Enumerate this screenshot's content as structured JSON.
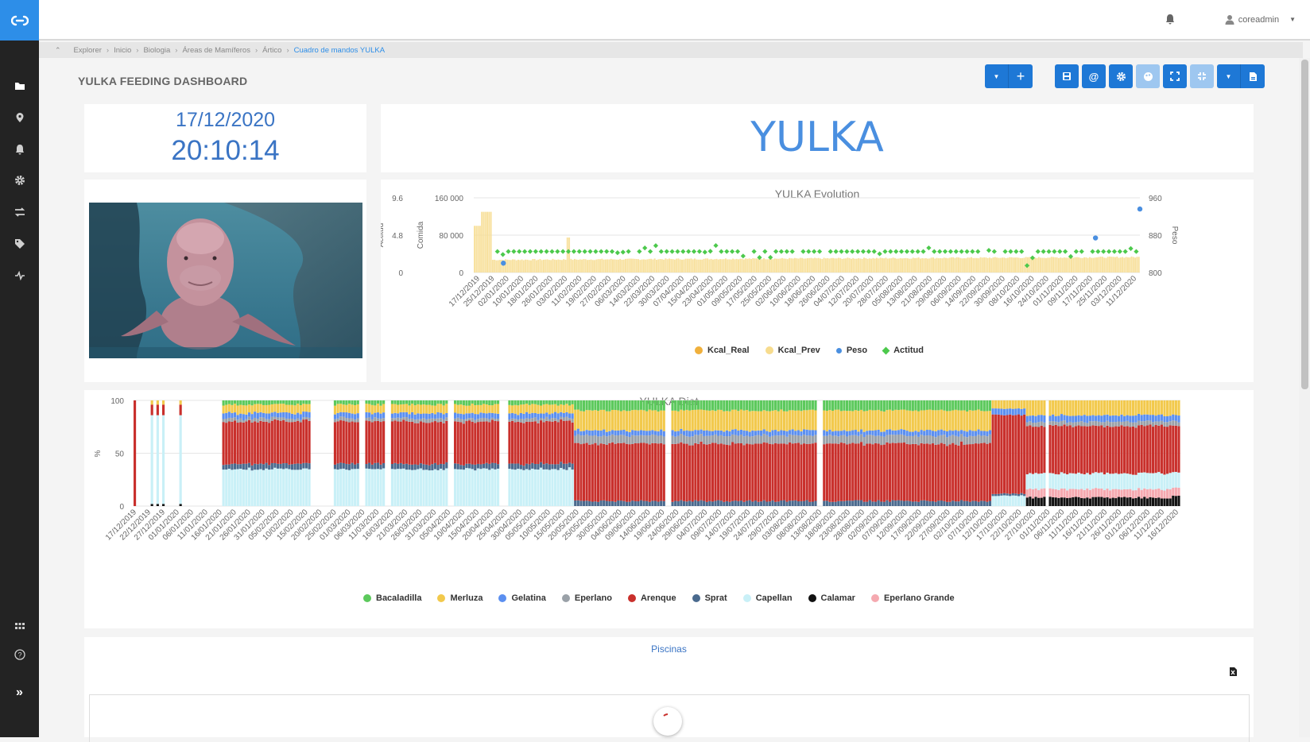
{
  "topbar": {
    "user_name": "coreadmin"
  },
  "breadcrumb": {
    "items": [
      "Explorer",
      "Inicio",
      "Biologia",
      "Áreas de Mamíferos",
      "Ártico"
    ],
    "active": "Cuadro de mandos YULKA"
  },
  "page": {
    "title": "YULKA FEEDING DASHBOARD"
  },
  "clock": {
    "date": "17/12/2020",
    "time": "20:10:14"
  },
  "animal": {
    "name": "YULKA"
  },
  "evolution": {
    "title": "YULKA Evolution",
    "legend": [
      {
        "label": "Kcal_Real",
        "color": "#f0b03c"
      },
      {
        "label": "Kcal_Prev",
        "color": "#f7dc8e"
      },
      {
        "label": "Peso",
        "color": "#4a8fe0"
      },
      {
        "label": "Actitud",
        "color": "#4cc94c"
      }
    ]
  },
  "diet": {
    "title": "YULKA Diet",
    "legend": [
      {
        "label": "Bacaladilla",
        "color": "#5cc95c"
      },
      {
        "label": "Merluza",
        "color": "#f2c94c"
      },
      {
        "label": "Gelatina",
        "color": "#5b8ff0"
      },
      {
        "label": "Eperlano",
        "color": "#9aa1a8"
      },
      {
        "label": "Arenque",
        "color": "#c9302c"
      },
      {
        "label": "Sprat",
        "color": "#4a6a8e"
      },
      {
        "label": "Capellan",
        "color": "#c9f0f7"
      },
      {
        "label": "Calamar",
        "color": "#111111"
      },
      {
        "label": "Eperlano Grande",
        "color": "#f5a9b0"
      }
    ]
  },
  "pools": {
    "title": "Piscinas"
  },
  "chart_data": [
    {
      "type": "bar",
      "title": "YULKA Evolution",
      "y_axes": [
        {
          "label": "Actitud",
          "ticks": [
            "0",
            "4.8",
            "9.6"
          ],
          "range": [
            0,
            9.6
          ]
        },
        {
          "label": "Comida",
          "ticks": [
            "0",
            "80 000",
            "160 000"
          ],
          "range": [
            0,
            160000
          ]
        },
        {
          "label": "Peso",
          "ticks": [
            "800",
            "880",
            "960"
          ],
          "range": [
            800,
            960
          ]
        }
      ],
      "x_labels": [
        "17/12/2019",
        "25/12/2019",
        "02/01/2020",
        "10/01/2020",
        "18/01/2020",
        "26/01/2020",
        "03/02/2020",
        "11/02/2020",
        "19/02/2020",
        "27/02/2020",
        "06/03/2020",
        "14/03/2020",
        "22/03/2020",
        "30/03/2020",
        "07/04/2020",
        "15/04/2020",
        "23/04/2020",
        "01/05/2020",
        "09/05/2020",
        "17/05/2020",
        "25/05/2020",
        "02/06/2020",
        "10/06/2020",
        "18/06/2020",
        "26/06/2020",
        "04/07/2020",
        "12/07/2020",
        "20/07/2020",
        "28/07/2020",
        "05/08/2020",
        "13/08/2020",
        "21/08/2020",
        "29/08/2020",
        "06/09/2020",
        "14/09/2020",
        "22/09/2020",
        "30/09/2020",
        "08/10/2020",
        "16/10/2020",
        "24/10/2020",
        "01/11/2020",
        "09/11/2020",
        "17/11/2020",
        "25/11/2020",
        "03/12/2020",
        "11/12/2020"
      ],
      "series": [
        {
          "name": "Kcal_Prev",
          "typical_value": 30000,
          "start_value": 100000,
          "early_peak": 130000
        },
        {
          "name": "Kcal_Real",
          "typical_value": 30000
        },
        {
          "name": "Peso",
          "values": [
            {
              "x": "02/01/2020",
              "y": 820
            },
            {
              "x": "17/11/2020",
              "y": 874
            },
            {
              "x": "11/12/2020",
              "y": 936
            }
          ]
        },
        {
          "name": "Actitud",
          "typical_value": 2.7,
          "range": [
            0.7,
            3.7
          ]
        }
      ]
    },
    {
      "type": "bar",
      "title": "YULKA Diet",
      "ylabel": "%",
      "y_ticks": [
        "0",
        "50",
        "100"
      ],
      "ylim": [
        0,
        100
      ],
      "stacked": true,
      "x_labels": [
        "17/12/2019",
        "22/12/2019",
        "27/12/2019",
        "01/01/2020",
        "06/01/2020",
        "11/01/2020",
        "16/01/2020",
        "21/01/2020",
        "26/01/2020",
        "31/01/2020",
        "05/02/2020",
        "10/02/2020",
        "15/02/2020",
        "20/02/2020",
        "25/02/2020",
        "01/03/2020",
        "06/03/2020",
        "11/03/2020",
        "16/03/2020",
        "21/03/2020",
        "26/03/2020",
        "31/03/2020",
        "05/04/2020",
        "10/04/2020",
        "15/04/2020",
        "20/04/2020",
        "25/04/2020",
        "30/04/2020",
        "05/05/2020",
        "10/05/2020",
        "15/05/2020",
        "20/05/2020",
        "25/05/2020",
        "30/05/2020",
        "04/06/2020",
        "09/06/2020",
        "14/06/2020",
        "19/06/2020",
        "24/06/2020",
        "29/06/2020",
        "04/07/2020",
        "09/07/2020",
        "14/07/2020",
        "19/07/2020",
        "24/07/2020",
        "29/07/2020",
        "03/08/2020",
        "08/08/2020",
        "13/08/2020",
        "18/08/2020",
        "23/08/2020",
        "28/08/2020",
        "02/09/2020",
        "07/09/2020",
        "12/09/2020",
        "17/09/2020",
        "22/09/2020",
        "27/09/2020",
        "02/10/2020",
        "07/10/2020",
        "12/10/2020",
        "17/10/2020",
        "22/10/2020",
        "27/10/2020",
        "01/11/2020",
        "06/11/2020",
        "11/11/2020",
        "16/11/2020",
        "21/11/2020",
        "26/11/2020",
        "01/12/2020",
        "06/12/2020",
        "11/12/2020",
        "16/12/2020"
      ],
      "phases": [
        {
          "period": "21/01/2020–10/05/2020",
          "Capellan": 35,
          "Sprat": 5,
          "Arenque": 40,
          "Eperlano": 3,
          "Gelatina": 5,
          "Merluza": 8,
          "Bacaladilla": 4
        },
        {
          "period": "10/05/2020–10/10/2020",
          "Sprat": 5,
          "Arenque": 57,
          "Eperlano": 8,
          "Gelatina": 5,
          "Merluza": 20,
          "Bacaladilla": 10
        },
        {
          "period": "27/10/2020–16/12/2020",
          "Capellan": 15,
          "Eperlano Grande": 8,
          "Calamar": 8,
          "Arenque": 45,
          "Eperlano": 4,
          "Gelatina": 6,
          "Merluza": 14
        }
      ]
    }
  ]
}
